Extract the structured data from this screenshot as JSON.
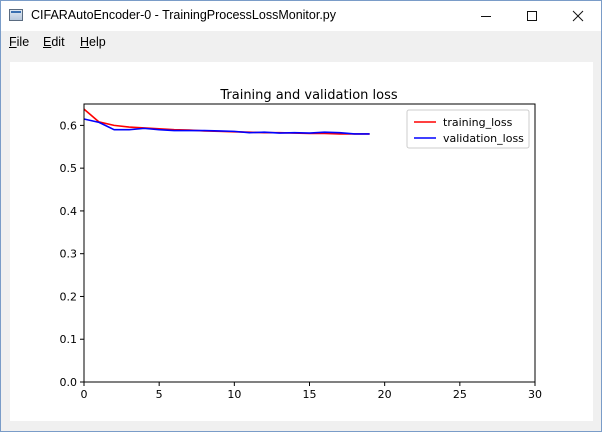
{
  "window": {
    "title": "CIFARAutoEncoder-0 - TrainingProcessLossMonitor.py",
    "icon": "app-window-icon",
    "controls": {
      "minimize_icon": "minimize-icon",
      "maximize_icon": "maximize-icon",
      "close_icon": "close-icon"
    }
  },
  "menu": {
    "items": [
      {
        "label": "File",
        "mnemonic": "F",
        "rest": "ile"
      },
      {
        "label": "Edit",
        "mnemonic": "E",
        "rest": "dit"
      },
      {
        "label": "Help",
        "mnemonic": "H",
        "rest": "elp"
      }
    ]
  },
  "chart_data": {
    "type": "line",
    "title": "Training and validation loss",
    "xlabel": "",
    "ylabel": "",
    "xlim": [
      0,
      30
    ],
    "ylim": [
      0,
      0.65
    ],
    "xticks": [
      0,
      5,
      10,
      15,
      20,
      25,
      30
    ],
    "xtick_labels": [
      "0",
      "5",
      "10",
      "15",
      "20",
      "25",
      "30"
    ],
    "yticks": [
      0.0,
      0.1,
      0.2,
      0.3,
      0.4,
      0.5,
      0.6
    ],
    "ytick_labels": [
      "0.0",
      "0.1",
      "0.2",
      "0.3",
      "0.4",
      "0.5",
      "0.6"
    ],
    "grid": false,
    "legend_position": "top-right",
    "x": [
      0,
      1,
      2,
      3,
      4,
      5,
      6,
      7,
      8,
      9,
      10,
      11,
      12,
      13,
      14,
      15,
      16,
      17,
      18,
      19
    ],
    "series": [
      {
        "name": "training_loss",
        "color": "#ff0000",
        "values": [
          0.638,
          0.608,
          0.6,
          0.596,
          0.594,
          0.592,
          0.59,
          0.589,
          0.587,
          0.586,
          0.585,
          0.584,
          0.583,
          0.583,
          0.582,
          0.581,
          0.581,
          0.58,
          0.58,
          0.58
        ]
      },
      {
        "name": "validation_loss",
        "color": "#0000ff",
        "values": [
          0.615,
          0.607,
          0.59,
          0.59,
          0.593,
          0.59,
          0.588,
          0.588,
          0.588,
          0.587,
          0.586,
          0.583,
          0.584,
          0.582,
          0.583,
          0.582,
          0.584,
          0.583,
          0.58,
          0.58
        ]
      }
    ]
  }
}
